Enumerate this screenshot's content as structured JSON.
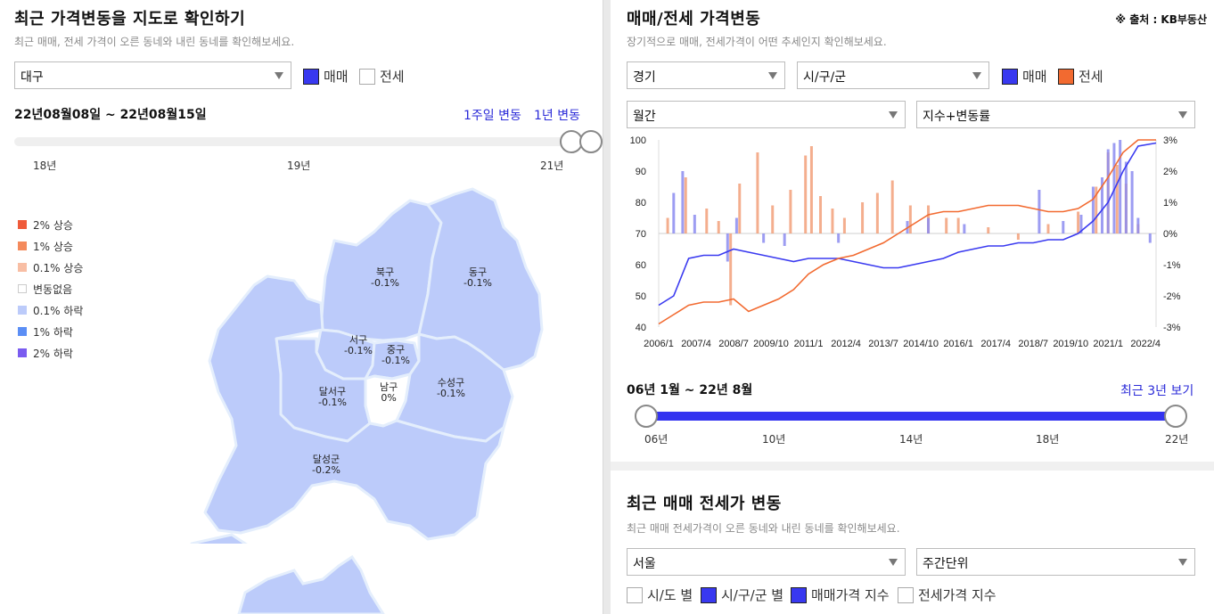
{
  "left": {
    "title": "최근 가격변동을 지도로 확인하기",
    "subtitle": "최근 매매, 전세 가격이 오른 동네와 내린 동네를 확인해보세요.",
    "region_select": "대구",
    "chk_sale": "매매",
    "chk_jeonse": "전세",
    "date_range": "22년08월08일 ~ 22년08월15일",
    "link_week": "1주일 변동",
    "link_year": "1년 변동",
    "slider_ticks": [
      "18년",
      "19년",
      "21년"
    ],
    "slider_position": 1.0,
    "legend": [
      {
        "label": "2% 상승",
        "color": "#ef5a3a"
      },
      {
        "label": "1% 상승",
        "color": "#f48a5c"
      },
      {
        "label": "0.1% 상승",
        "color": "#f8bea4"
      },
      {
        "label": "변동없음",
        "color": "#ffffff"
      },
      {
        "label": "0.1% 하락",
        "color": "#bccbfa"
      },
      {
        "label": "1% 하락",
        "color": "#5b8ef5"
      },
      {
        "label": "2% 하락",
        "color": "#7a5cf0"
      }
    ],
    "districts": [
      {
        "name": "북구",
        "change": "-0.1%"
      },
      {
        "name": "동구",
        "change": "-0.1%"
      },
      {
        "name": "서구",
        "change": "-0.1%"
      },
      {
        "name": "중구",
        "change": "-0.1%"
      },
      {
        "name": "달서구",
        "change": "-0.1%"
      },
      {
        "name": "남구",
        "change": "0%"
      },
      {
        "name": "수성구",
        "change": "-0.1%"
      },
      {
        "name": "달성군",
        "change": "-0.2%"
      }
    ],
    "map_fill": "#bccbfa",
    "map_stroke": "#e4eefc"
  },
  "right": {
    "title": "매매/전세 가격변동",
    "source": "※ 출처 : KB부동산",
    "subtitle": "장기적으로 매매, 전세가격이 어떤 추세인지 확인해보세요.",
    "region_select": "경기",
    "district_select": "시/구/군",
    "chk_sale": "매매",
    "chk_jeonse": "전세",
    "period_select": "월간",
    "mode_select": "지수+변동률",
    "date_range": "06년 1월 ~ 22년 8월",
    "link_recent": "최근 3년 보기",
    "slider_ticks": [
      "06년",
      "10년",
      "14년",
      "18년",
      "22년"
    ],
    "slider_range": [
      0.0,
      1.0
    ],
    "chart_data": {
      "type": "line",
      "title": "",
      "x_labels": [
        "2006/1",
        "2007/4",
        "2008/7",
        "2009/10",
        "2011/1",
        "2012/4",
        "2013/7",
        "2014/10",
        "2016/1",
        "2017/4",
        "2018/7",
        "2019/10",
        "2021/1",
        "2022/4"
      ],
      "y_left_ticks": [
        "100",
        "90",
        "80",
        "70",
        "60",
        "50",
        "40"
      ],
      "y_right_ticks": [
        "3%",
        "2%",
        "1%",
        "0%",
        "-1%",
        "-2%",
        "-3%"
      ],
      "ylim_left": [
        40,
        100
      ],
      "ylim_right": [
        -3,
        3
      ],
      "grid": false,
      "series": [
        {
          "name": "매매",
          "color": "#3a3af0",
          "x": [
            2006.0,
            2006.5,
            2007.0,
            2007.5,
            2008.0,
            2008.5,
            2009.0,
            2009.5,
            2010.0,
            2010.5,
            2011.0,
            2011.5,
            2012.0,
            2012.5,
            2013.0,
            2013.5,
            2014.0,
            2014.5,
            2015.0,
            2015.5,
            2016.0,
            2016.5,
            2017.0,
            2017.5,
            2018.0,
            2018.5,
            2019.0,
            2019.5,
            2020.0,
            2020.5,
            2021.0,
            2021.5,
            2022.0,
            2022.6
          ],
          "values": [
            47,
            50,
            62,
            63,
            63,
            65,
            64,
            63,
            62,
            61,
            62,
            62,
            62,
            61,
            60,
            59,
            59,
            60,
            61,
            62,
            64,
            65,
            66,
            66,
            67,
            67,
            68,
            68,
            70,
            74,
            80,
            90,
            98,
            99
          ]
        },
        {
          "name": "전세",
          "color": "#f26a30",
          "x": [
            2006.0,
            2006.5,
            2007.0,
            2007.5,
            2008.0,
            2008.5,
            2009.0,
            2009.5,
            2010.0,
            2010.5,
            2011.0,
            2011.5,
            2012.0,
            2012.5,
            2013.0,
            2013.5,
            2014.0,
            2014.5,
            2015.0,
            2015.5,
            2016.0,
            2016.5,
            2017.0,
            2017.5,
            2018.0,
            2018.5,
            2019.0,
            2019.5,
            2020.0,
            2020.5,
            2021.0,
            2021.5,
            2022.0,
            2022.6
          ],
          "values": [
            41,
            44,
            47,
            48,
            48,
            49,
            45,
            47,
            49,
            52,
            57,
            60,
            62,
            63,
            65,
            67,
            70,
            73,
            76,
            77,
            77,
            78,
            79,
            79,
            79,
            78,
            77,
            77,
            78,
            81,
            88,
            96,
            100,
            100
          ]
        }
      ],
      "bars_note": "monthly change-rate bars on right axis",
      "change_bars": {
        "sale": {
          "color": "#8c8cf0",
          "x": [
            2006.5,
            2006.8,
            2007.2,
            2008.3,
            2008.6,
            2009.5,
            2010.2,
            2012.0,
            2014.3,
            2015.0,
            2016.2,
            2018.7,
            2019.5,
            2020.1,
            2020.5,
            2020.8,
            2021.0,
            2021.2,
            2021.4,
            2021.6,
            2021.8,
            2022.0,
            2022.4
          ],
          "values": [
            1.3,
            2.0,
            0.6,
            -0.9,
            0.5,
            -0.3,
            -0.4,
            -0.3,
            0.4,
            0.5,
            0.3,
            1.4,
            0.4,
            0.6,
            1.5,
            1.8,
            2.7,
            2.9,
            3.0,
            2.3,
            2.0,
            0.5,
            -0.3
          ]
        },
        "jeonse": {
          "color": "#f2a07a",
          "x": [
            2006.3,
            2006.9,
            2007.6,
            2008.0,
            2008.4,
            2008.7,
            2009.3,
            2009.8,
            2010.4,
            2010.9,
            2011.1,
            2011.4,
            2011.8,
            2012.2,
            2012.8,
            2013.3,
            2013.8,
            2014.4,
            2015.0,
            2015.6,
            2016.0,
            2017.0,
            2018.0,
            2019.0,
            2020.0,
            2020.6,
            2021.0,
            2021.3,
            2021.6,
            2022.0
          ],
          "values": [
            0.5,
            1.8,
            0.8,
            0.4,
            -2.3,
            1.6,
            2.6,
            0.9,
            1.4,
            2.5,
            2.8,
            1.2,
            0.8,
            0.5,
            1.0,
            1.3,
            1.7,
            0.9,
            0.9,
            0.5,
            0.5,
            0.2,
            -0.2,
            0.3,
            0.7,
            1.5,
            2.6,
            2.2,
            1.6,
            0.3
          ]
        }
      }
    }
  },
  "bottom": {
    "title": "최근 매매 전세가 변동",
    "subtitle": "최근 매매 전세가격이 오른 동네와 내린 동네를 확인해보세요.",
    "region_select": "서울",
    "unit_select": "주간단위",
    "chk_sido": "시/도 별",
    "chk_sigungu": "시/구/군 별",
    "chk_sale_index": "매매가격 지수",
    "chk_jeonse_index": "전세가격 지수"
  }
}
